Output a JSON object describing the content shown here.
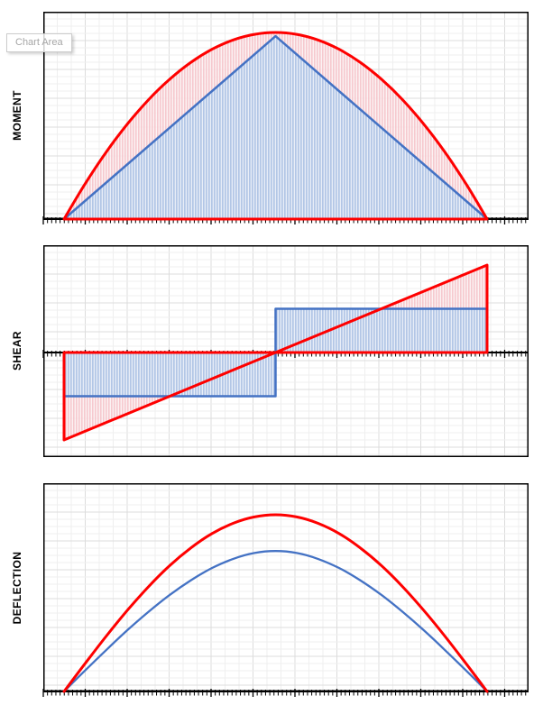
{
  "tooltip": {
    "label": "Chart Area",
    "text_color": "#a6a6a6"
  },
  "colors": {
    "red_series": "#fe0000",
    "blue_series": "#4472c4",
    "red_hatch_stripe": "#f4c2c8",
    "red_hatch_bg": "#fcf0f1",
    "blue_hatch_stripe": "#aec3e5",
    "blue_hatch_bg": "#e6edf8",
    "grid_minor": "#efefef",
    "grid_major": "#dcdcdc",
    "axis": "#000000",
    "plot_border": "#000000"
  },
  "chart_data": [
    {
      "type": "area",
      "title": "MOMENT",
      "xlabel": "",
      "ylabel": "MOMENT",
      "x_range": [
        0,
        1
      ],
      "y_range": [
        0,
        1.11
      ],
      "grid": true,
      "legend": "none",
      "series": [
        {
          "name": "red",
          "color": "#fe0000",
          "fill": "red-hatch",
          "peak": 1.0,
          "smooth": true,
          "points": [
            [
              0,
              0
            ],
            [
              0.05,
              0.19
            ],
            [
              0.1,
              0.36
            ],
            [
              0.15,
              0.51
            ],
            [
              0.2,
              0.64
            ],
            [
              0.25,
              0.75
            ],
            [
              0.3,
              0.84
            ],
            [
              0.35,
              0.91
            ],
            [
              0.4,
              0.96
            ],
            [
              0.45,
              0.99
            ],
            [
              0.5,
              1
            ],
            [
              0.55,
              0.99
            ],
            [
              0.6,
              0.96
            ],
            [
              0.65,
              0.91
            ],
            [
              0.7,
              0.84
            ],
            [
              0.75,
              0.75
            ],
            [
              0.8,
              0.64
            ],
            [
              0.85,
              0.51
            ],
            [
              0.9,
              0.36
            ],
            [
              0.95,
              0.19
            ],
            [
              1,
              0
            ]
          ]
        },
        {
          "name": "blue",
          "color": "#4472c4",
          "fill": "blue-hatch",
          "peak": 0.98,
          "smooth": false,
          "points": [
            [
              0,
              0
            ],
            [
              0.5,
              1
            ],
            [
              1,
              0
            ]
          ]
        }
      ]
    },
    {
      "type": "area",
      "title": "SHEAR",
      "xlabel": "",
      "ylabel": "SHEAR",
      "x_range": [
        0,
        1
      ],
      "y_range": [
        -1.22,
        1.2
      ],
      "grid": true,
      "legend": "none",
      "series": [
        {
          "name": "red",
          "color": "#fe0000",
          "fill": "red-hatch",
          "peak": 1.0,
          "smooth": false,
          "points": [
            [
              0,
              -1
            ],
            [
              1,
              1
            ]
          ]
        },
        {
          "name": "blue",
          "color": "#4472c4",
          "fill": "blue-hatch",
          "peak": 0.5,
          "smooth": false,
          "points": [
            [
              0,
              -1
            ],
            [
              0.5,
              -1
            ],
            [
              0.5,
              1
            ],
            [
              1,
              1
            ]
          ]
        }
      ]
    },
    {
      "type": "line",
      "title": "DEFLECTION",
      "xlabel": "",
      "ylabel": "DEFLECTION",
      "x_range": [
        0,
        1
      ],
      "y_range": [
        0,
        1.18
      ],
      "grid": true,
      "legend": "none",
      "series": [
        {
          "name": "red",
          "color": "#fe0000",
          "fill": "none",
          "peak": 1.0,
          "smooth": true,
          "points": [
            [
              0,
              0
            ],
            [
              0.05,
              0.159
            ],
            [
              0.1,
              0.314
            ],
            [
              0.15,
              0.46
            ],
            [
              0.2,
              0.594
            ],
            [
              0.25,
              0.713
            ],
            [
              0.3,
              0.813
            ],
            [
              0.35,
              0.894
            ],
            [
              0.4,
              0.952
            ],
            [
              0.45,
              0.988
            ],
            [
              0.5,
              1
            ],
            [
              0.55,
              0.988
            ],
            [
              0.6,
              0.952
            ],
            [
              0.65,
              0.894
            ],
            [
              0.7,
              0.813
            ],
            [
              0.75,
              0.713
            ],
            [
              0.8,
              0.594
            ],
            [
              0.85,
              0.46
            ],
            [
              0.9,
              0.314
            ],
            [
              0.95,
              0.159
            ],
            [
              1,
              0
            ]
          ]
        },
        {
          "name": "blue",
          "color": "#4472c4",
          "fill": "none",
          "peak": 0.795,
          "smooth": true,
          "points": [
            [
              0,
              0
            ],
            [
              0.05,
              0.15
            ],
            [
              0.1,
              0.296
            ],
            [
              0.15,
              0.437
            ],
            [
              0.2,
              0.568
            ],
            [
              0.25,
              0.688
            ],
            [
              0.3,
              0.792
            ],
            [
              0.35,
              0.879
            ],
            [
              0.4,
              0.944
            ],
            [
              0.45,
              0.986
            ],
            [
              0.5,
              1
            ],
            [
              0.55,
              0.986
            ],
            [
              0.6,
              0.944
            ],
            [
              0.65,
              0.879
            ],
            [
              0.7,
              0.792
            ],
            [
              0.75,
              0.688
            ],
            [
              0.8,
              0.568
            ],
            [
              0.85,
              0.437
            ],
            [
              0.9,
              0.296
            ],
            [
              0.95,
              0.15
            ],
            [
              1,
              0
            ]
          ]
        }
      ]
    }
  ]
}
